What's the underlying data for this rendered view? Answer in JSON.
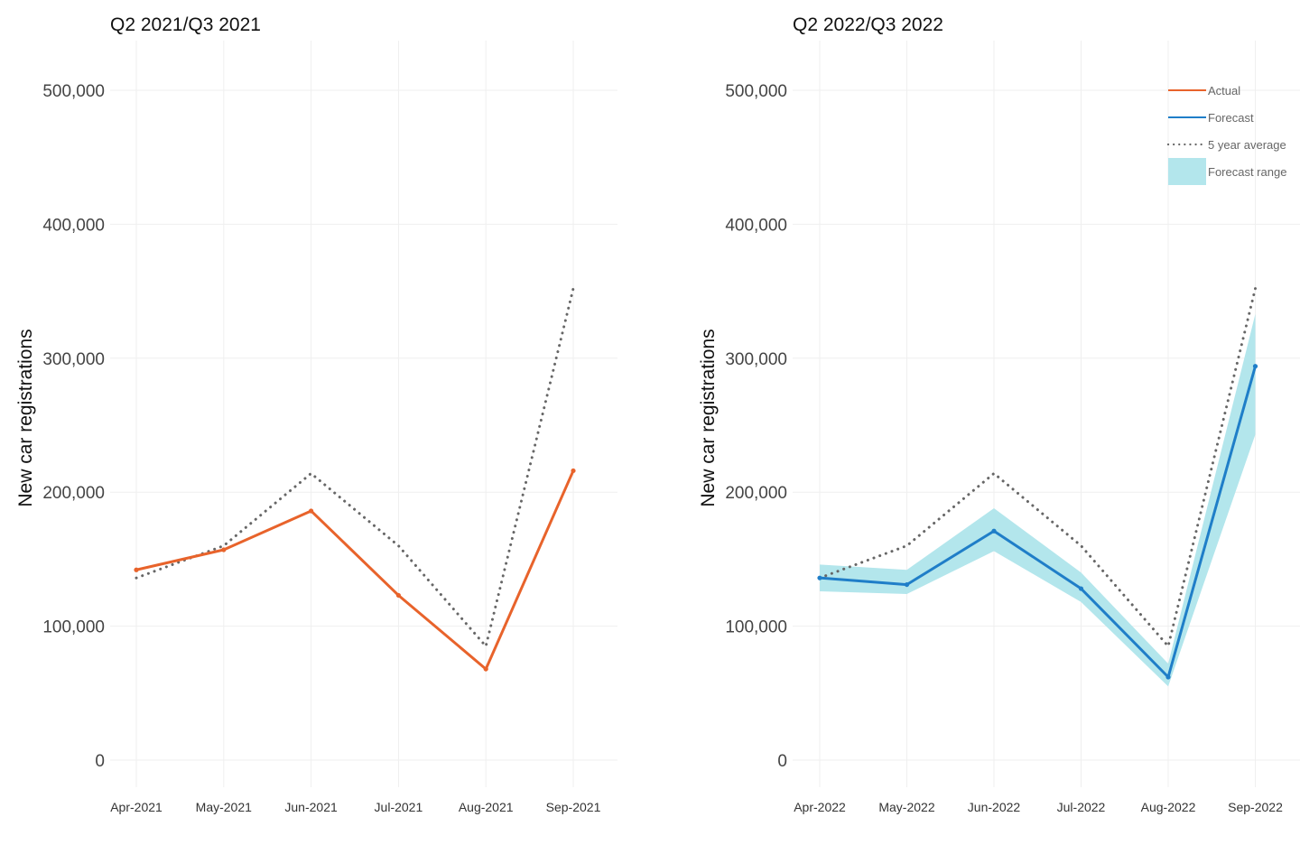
{
  "chart_data": [
    {
      "type": "line",
      "title": "Q2 2021/Q3 2021",
      "xlabel": "",
      "ylabel": "New car registrations",
      "categories": [
        "Apr-2021",
        "May-2021",
        "Jun-2021",
        "Jul-2021",
        "Aug-2021",
        "Sep-2021"
      ],
      "ylim": [
        0,
        520000
      ],
      "yticks": [
        0,
        100000,
        200000,
        300000,
        400000,
        500000
      ],
      "ytick_labels": [
        "0",
        "100,000",
        "200,000",
        "300,000",
        "400,000",
        "500,000"
      ],
      "grid": true,
      "series": [
        {
          "name": "Actual",
          "style": "solid",
          "color": "#E8632B",
          "values": [
            142000,
            157000,
            186000,
            123000,
            68000,
            216000
          ]
        },
        {
          "name": "5 year average",
          "style": "dotted",
          "color": "#666666",
          "values": [
            136000,
            160000,
            214000,
            160000,
            85000,
            352000
          ]
        }
      ]
    },
    {
      "type": "line",
      "title": "Q2 2022/Q3 2022",
      "xlabel": "",
      "ylabel": "New car registrations",
      "categories": [
        "Apr-2022",
        "May-2022",
        "Jun-2022",
        "Jul-2022",
        "Aug-2022",
        "Sep-2022"
      ],
      "ylim": [
        0,
        520000
      ],
      "yticks": [
        0,
        100000,
        200000,
        300000,
        400000,
        500000
      ],
      "ytick_labels": [
        "0",
        "100,000",
        "200,000",
        "300,000",
        "400,000",
        "500,000"
      ],
      "grid": true,
      "legend_position": "top-right",
      "legend": [
        {
          "label": "Actual",
          "kind": "line",
          "style": "solid",
          "color": "#E8632B"
        },
        {
          "label": "Forecast",
          "kind": "line",
          "style": "solid",
          "color": "#1F7EC8"
        },
        {
          "label": "5 year average",
          "kind": "line",
          "style": "dotted",
          "color": "#666666"
        },
        {
          "label": "Forecast range",
          "kind": "band",
          "color": "#B3E6EC"
        }
      ],
      "series": [
        {
          "name": "Forecast",
          "style": "solid",
          "color": "#1F7EC8",
          "values": [
            136000,
            131000,
            171000,
            128000,
            62000,
            294000
          ]
        },
        {
          "name": "5 year average",
          "style": "dotted",
          "color": "#666666",
          "values": [
            136000,
            160000,
            214000,
            160000,
            85000,
            352000
          ]
        }
      ],
      "band": {
        "name": "Forecast range",
        "color": "#B3E6EC",
        "lower": [
          126000,
          124000,
          156000,
          118000,
          55000,
          243000
        ],
        "upper": [
          146000,
          142000,
          188000,
          140000,
          72000,
          333000
        ]
      }
    }
  ]
}
